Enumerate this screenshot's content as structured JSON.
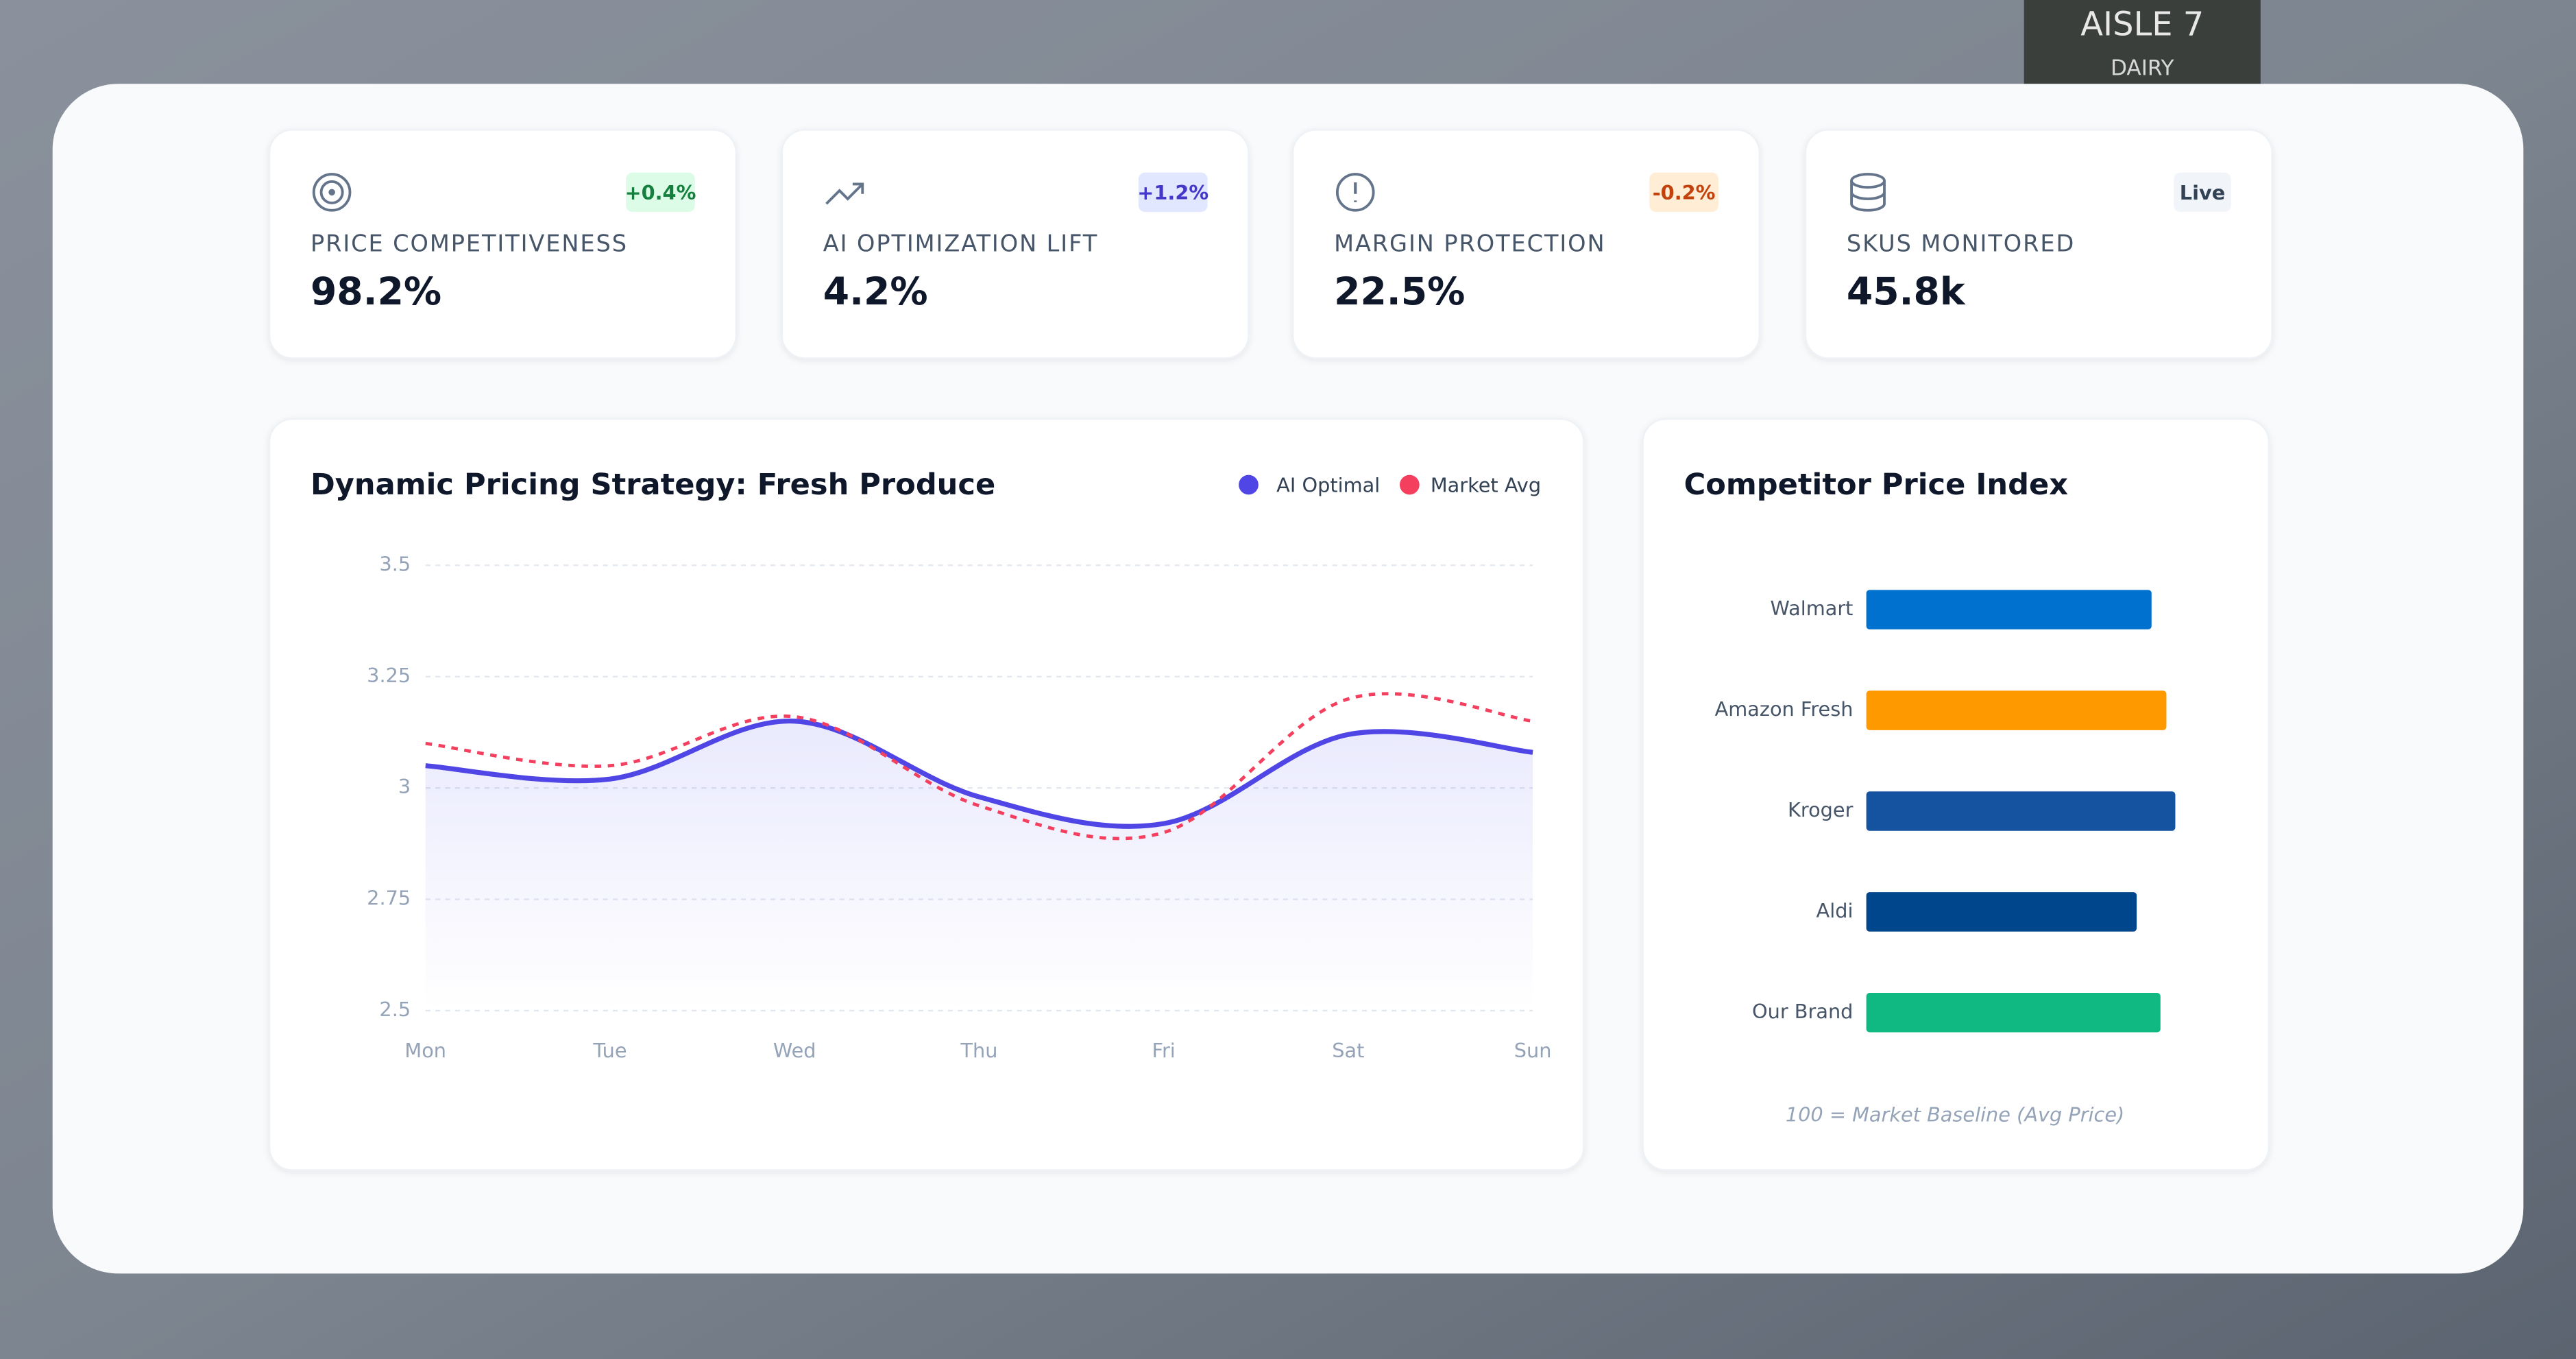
{
  "background": {
    "sign_title": "AISLE 7",
    "sign_subtitle": "DAIRY"
  },
  "kpis": [
    {
      "label": "PRICE COMPETITIVENESS",
      "value": "98.2%",
      "badge": "+0.4%"
    },
    {
      "label": "AI OPTIMIZATION LIFT",
      "value": "4.2%",
      "badge": "+1.2%"
    },
    {
      "label": "MARGIN PROTECTION",
      "value": "22.5%",
      "badge": "-0.2%"
    },
    {
      "label": "SKUS MONITORED",
      "value": "45.8k",
      "badge": "Live"
    }
  ],
  "chart_data": [
    {
      "type": "line",
      "title": "Dynamic Pricing Strategy: Fresh Produce",
      "categories": [
        "Mon",
        "Tue",
        "Wed",
        "Thu",
        "Fri",
        "Sat",
        "Sun"
      ],
      "series": [
        {
          "name": "AI Optimal",
          "color": "#4f46e5",
          "values": [
            3.05,
            3.02,
            3.15,
            2.98,
            2.92,
            3.12,
            3.08
          ]
        },
        {
          "name": "Market Avg",
          "color": "#f43f5e",
          "values": [
            3.1,
            3.05,
            3.16,
            2.96,
            2.9,
            3.2,
            3.15
          ]
        }
      ],
      "ylim": [
        2.5,
        3.5
      ],
      "yticks": [
        2.5,
        2.75,
        3,
        3.25,
        3.5
      ],
      "grid": true,
      "legend": "top-right"
    },
    {
      "type": "bar",
      "orientation": "horizontal",
      "title": "Competitor Price Index",
      "categories": [
        "Walmart",
        "Amazon Fresh",
        "Kroger",
        "Aldi",
        "Our Brand"
      ],
      "values": [
        96,
        101,
        104,
        91,
        99
      ],
      "colors": [
        "#0071ce",
        "#ff9900",
        "#1553a0",
        "#00468c",
        "#10b981"
      ],
      "xlim": [
        0,
        115
      ],
      "note": "100 = Market Baseline (Avg Price)"
    }
  ]
}
